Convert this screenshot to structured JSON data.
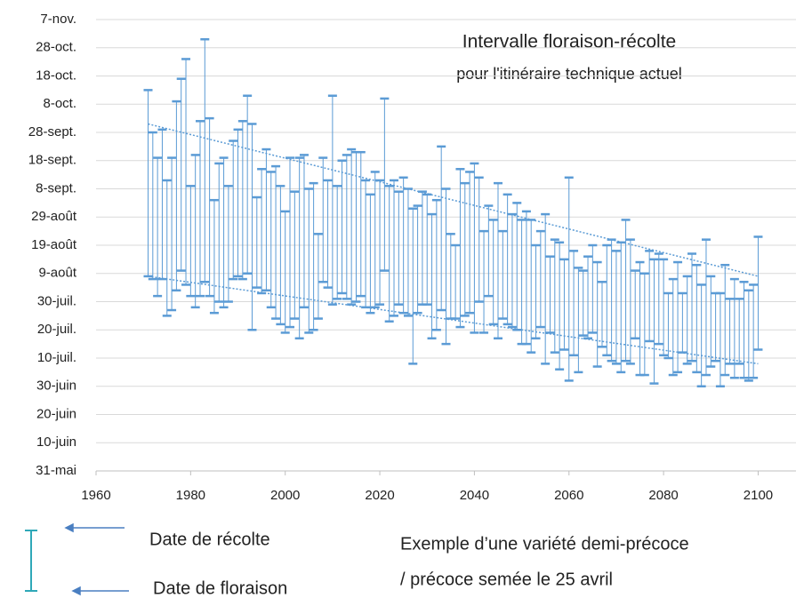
{
  "chart_data": {
    "type": "range-bar",
    "title": [
      "Intervalle floraison-récolte",
      "pour l'itinéraire technique actuel"
    ],
    "annotation": [
      "Exemple d’une variété demi-précoce",
      "/  précoce semée le 25 avril"
    ],
    "xlim": [
      1960,
      2108
    ],
    "xticks": [
      1960,
      1980,
      2000,
      2020,
      2040,
      2060,
      2080,
      2100
    ],
    "ylim": [
      151,
      311
    ],
    "yticks": [
      {
        "value": 151,
        "label": "31-mai"
      },
      {
        "value": 161,
        "label": "10-juin"
      },
      {
        "value": 171,
        "label": "20-juin"
      },
      {
        "value": 181,
        "label": "30-juin"
      },
      {
        "value": 191,
        "label": "10-juil."
      },
      {
        "value": 201,
        "label": "20-juil."
      },
      {
        "value": 211,
        "label": "30-juil."
      },
      {
        "value": 221,
        "label": "9-août"
      },
      {
        "value": 231,
        "label": "19-août"
      },
      {
        "value": 241,
        "label": "29-août"
      },
      {
        "value": 251,
        "label": "8-sept."
      },
      {
        "value": 261,
        "label": "18-sept."
      },
      {
        "value": 271,
        "label": "28-sept."
      },
      {
        "value": 281,
        "label": "8-oct."
      },
      {
        "value": 291,
        "label": "18-oct."
      },
      {
        "value": 301,
        "label": "28-oct."
      },
      {
        "value": 311,
        "label": "7-nov."
      }
    ],
    "grid": true,
    "color": "#5b9bd5",
    "legend_color": "#2fa8b8",
    "x": [
      1971,
      1972,
      1973,
      1974,
      1975,
      1976,
      1977,
      1978,
      1979,
      1980,
      1981,
      1982,
      1983,
      1984,
      1985,
      1986,
      1987,
      1988,
      1989,
      1990,
      1991,
      1992,
      1993,
      1994,
      1995,
      1996,
      1997,
      1998,
      1999,
      2000,
      2001,
      2002,
      2003,
      2004,
      2005,
      2006,
      2007,
      2008,
      2009,
      2010,
      2011,
      2012,
      2013,
      2014,
      2015,
      2016,
      2017,
      2018,
      2019,
      2020,
      2021,
      2022,
      2023,
      2024,
      2025,
      2026,
      2027,
      2028,
      2029,
      2030,
      2031,
      2032,
      2033,
      2034,
      2035,
      2036,
      2037,
      2038,
      2039,
      2040,
      2041,
      2042,
      2043,
      2044,
      2045,
      2046,
      2047,
      2048,
      2049,
      2050,
      2051,
      2052,
      2053,
      2054,
      2055,
      2056,
      2057,
      2058,
      2059,
      2060,
      2061,
      2062,
      2063,
      2064,
      2065,
      2066,
      2067,
      2068,
      2069,
      2070,
      2071,
      2072,
      2073,
      2074,
      2075,
      2076,
      2077,
      2078,
      2079,
      2080,
      2081,
      2082,
      2083,
      2084,
      2085,
      2086,
      2087,
      2088,
      2089,
      2090,
      2091,
      2092,
      2093,
      2094,
      2095,
      2096,
      2097,
      2098,
      2099,
      2100
    ],
    "series": [
      {
        "name": "Date de récolte",
        "values": [
          286,
          271,
          262,
          272,
          254,
          262,
          282,
          290,
          297,
          252,
          263,
          275,
          304,
          276,
          247,
          260,
          262,
          252,
          268,
          272,
          275,
          284,
          274,
          248,
          258,
          265,
          257,
          259,
          252,
          243,
          262,
          250,
          262,
          263,
          251,
          253,
          235,
          262,
          254,
          284,
          252,
          261,
          263,
          265,
          264,
          264,
          254,
          249,
          257,
          254,
          283,
          252,
          254,
          250,
          255,
          251,
          244,
          245,
          250,
          249,
          242,
          247,
          266,
          251,
          235,
          231,
          258,
          253,
          257,
          260,
          255,
          236,
          245,
          240,
          253,
          236,
          249,
          242,
          246,
          240,
          243,
          240,
          231,
          236,
          242,
          227,
          233,
          232,
          226,
          255,
          229,
          223,
          222,
          227,
          231,
          225,
          218,
          231,
          233,
          229,
          232,
          240,
          233,
          222,
          225,
          221,
          229,
          226,
          228,
          226,
          214,
          219,
          225,
          214,
          220,
          228,
          224,
          217,
          233,
          220,
          214,
          214,
          224,
          212,
          219,
          212,
          218,
          215,
          217,
          234
        ]
      },
      {
        "name": "Date de floraison",
        "values": [
          220,
          219,
          213,
          219,
          206,
          208,
          215,
          222,
          217,
          213,
          209,
          213,
          218,
          213,
          207,
          211,
          209,
          211,
          219,
          220,
          219,
          221,
          201,
          216,
          214,
          215,
          209,
          205,
          203,
          200,
          202,
          205,
          198,
          209,
          200,
          201,
          205,
          218,
          216,
          210,
          212,
          214,
          212,
          210,
          211,
          213,
          209,
          207,
          209,
          210,
          222,
          204,
          206,
          210,
          207,
          206,
          189,
          207,
          210,
          210,
          198,
          201,
          208,
          196,
          205,
          205,
          202,
          206,
          207,
          200,
          211,
          200,
          213,
          203,
          198,
          205,
          203,
          202,
          201,
          196,
          196,
          193,
          198,
          202,
          189,
          200,
          193,
          187,
          194,
          183,
          192,
          186,
          199,
          198,
          200,
          188,
          195,
          192,
          190,
          189,
          186,
          190,
          189,
          198,
          185,
          185,
          197,
          182,
          196,
          192,
          191,
          185,
          186,
          193,
          189,
          190,
          186,
          181,
          185,
          188,
          190,
          181,
          185,
          189,
          184,
          189,
          184,
          183,
          184,
          194
        ]
      }
    ],
    "trend": {
      "x": [
        1971,
        2100
      ],
      "high": [
        274,
        220
      ],
      "low": [
        220,
        189
      ]
    }
  }
}
